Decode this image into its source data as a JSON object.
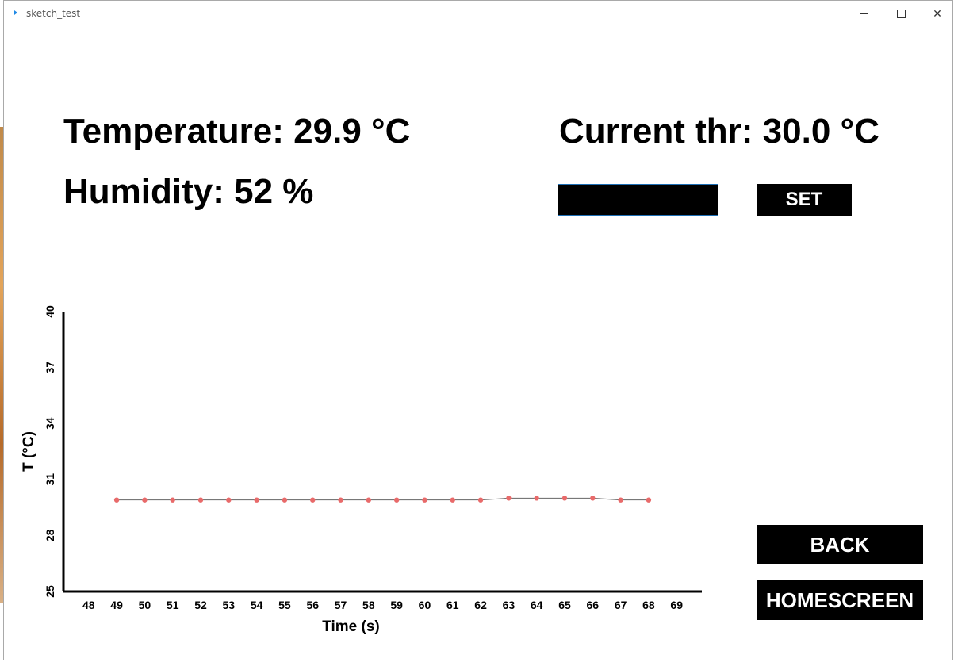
{
  "window": {
    "title": "sketch_test",
    "controls": {
      "minimize": "minimize",
      "maximize": "maximize",
      "close": "✕"
    }
  },
  "readings": {
    "temperature": "Temperature: 29.9 °C",
    "humidity": "Humidity: 52 %",
    "threshold": "Current thr: 30.0 °C"
  },
  "threshold_input": {
    "value": "",
    "placeholder": ""
  },
  "buttons": {
    "set": "SET",
    "back": "BACK",
    "homescreen": "HOMESCREEN"
  },
  "colors": {
    "point": "#e86a6a",
    "line": "#666666",
    "button_bg": "#000000",
    "button_text": "#ffffff"
  },
  "chart_data": {
    "type": "line",
    "title": "",
    "xlabel": "Time (s)",
    "ylabel": "T (°C)",
    "xlim": [
      47.1,
      69.9
    ],
    "ylim": [
      25,
      40
    ],
    "xticks": [
      48,
      49,
      50,
      51,
      52,
      53,
      54,
      55,
      56,
      57,
      58,
      59,
      60,
      61,
      62,
      63,
      64,
      65,
      66,
      67,
      68,
      69
    ],
    "yticks": [
      25,
      28,
      31,
      34,
      37,
      40
    ],
    "grid": false,
    "series": [
      {
        "x": [
          49,
          50,
          51,
          52,
          53,
          54,
          55,
          56,
          57,
          58,
          59,
          60,
          61,
          62,
          63,
          64,
          65,
          66,
          67,
          68
        ],
        "values": [
          29.9,
          29.9,
          29.9,
          29.9,
          29.9,
          29.9,
          29.9,
          29.9,
          29.9,
          29.9,
          29.9,
          29.9,
          29.9,
          29.9,
          30.0,
          30.0,
          30.0,
          30.0,
          29.9,
          29.9
        ]
      }
    ]
  }
}
